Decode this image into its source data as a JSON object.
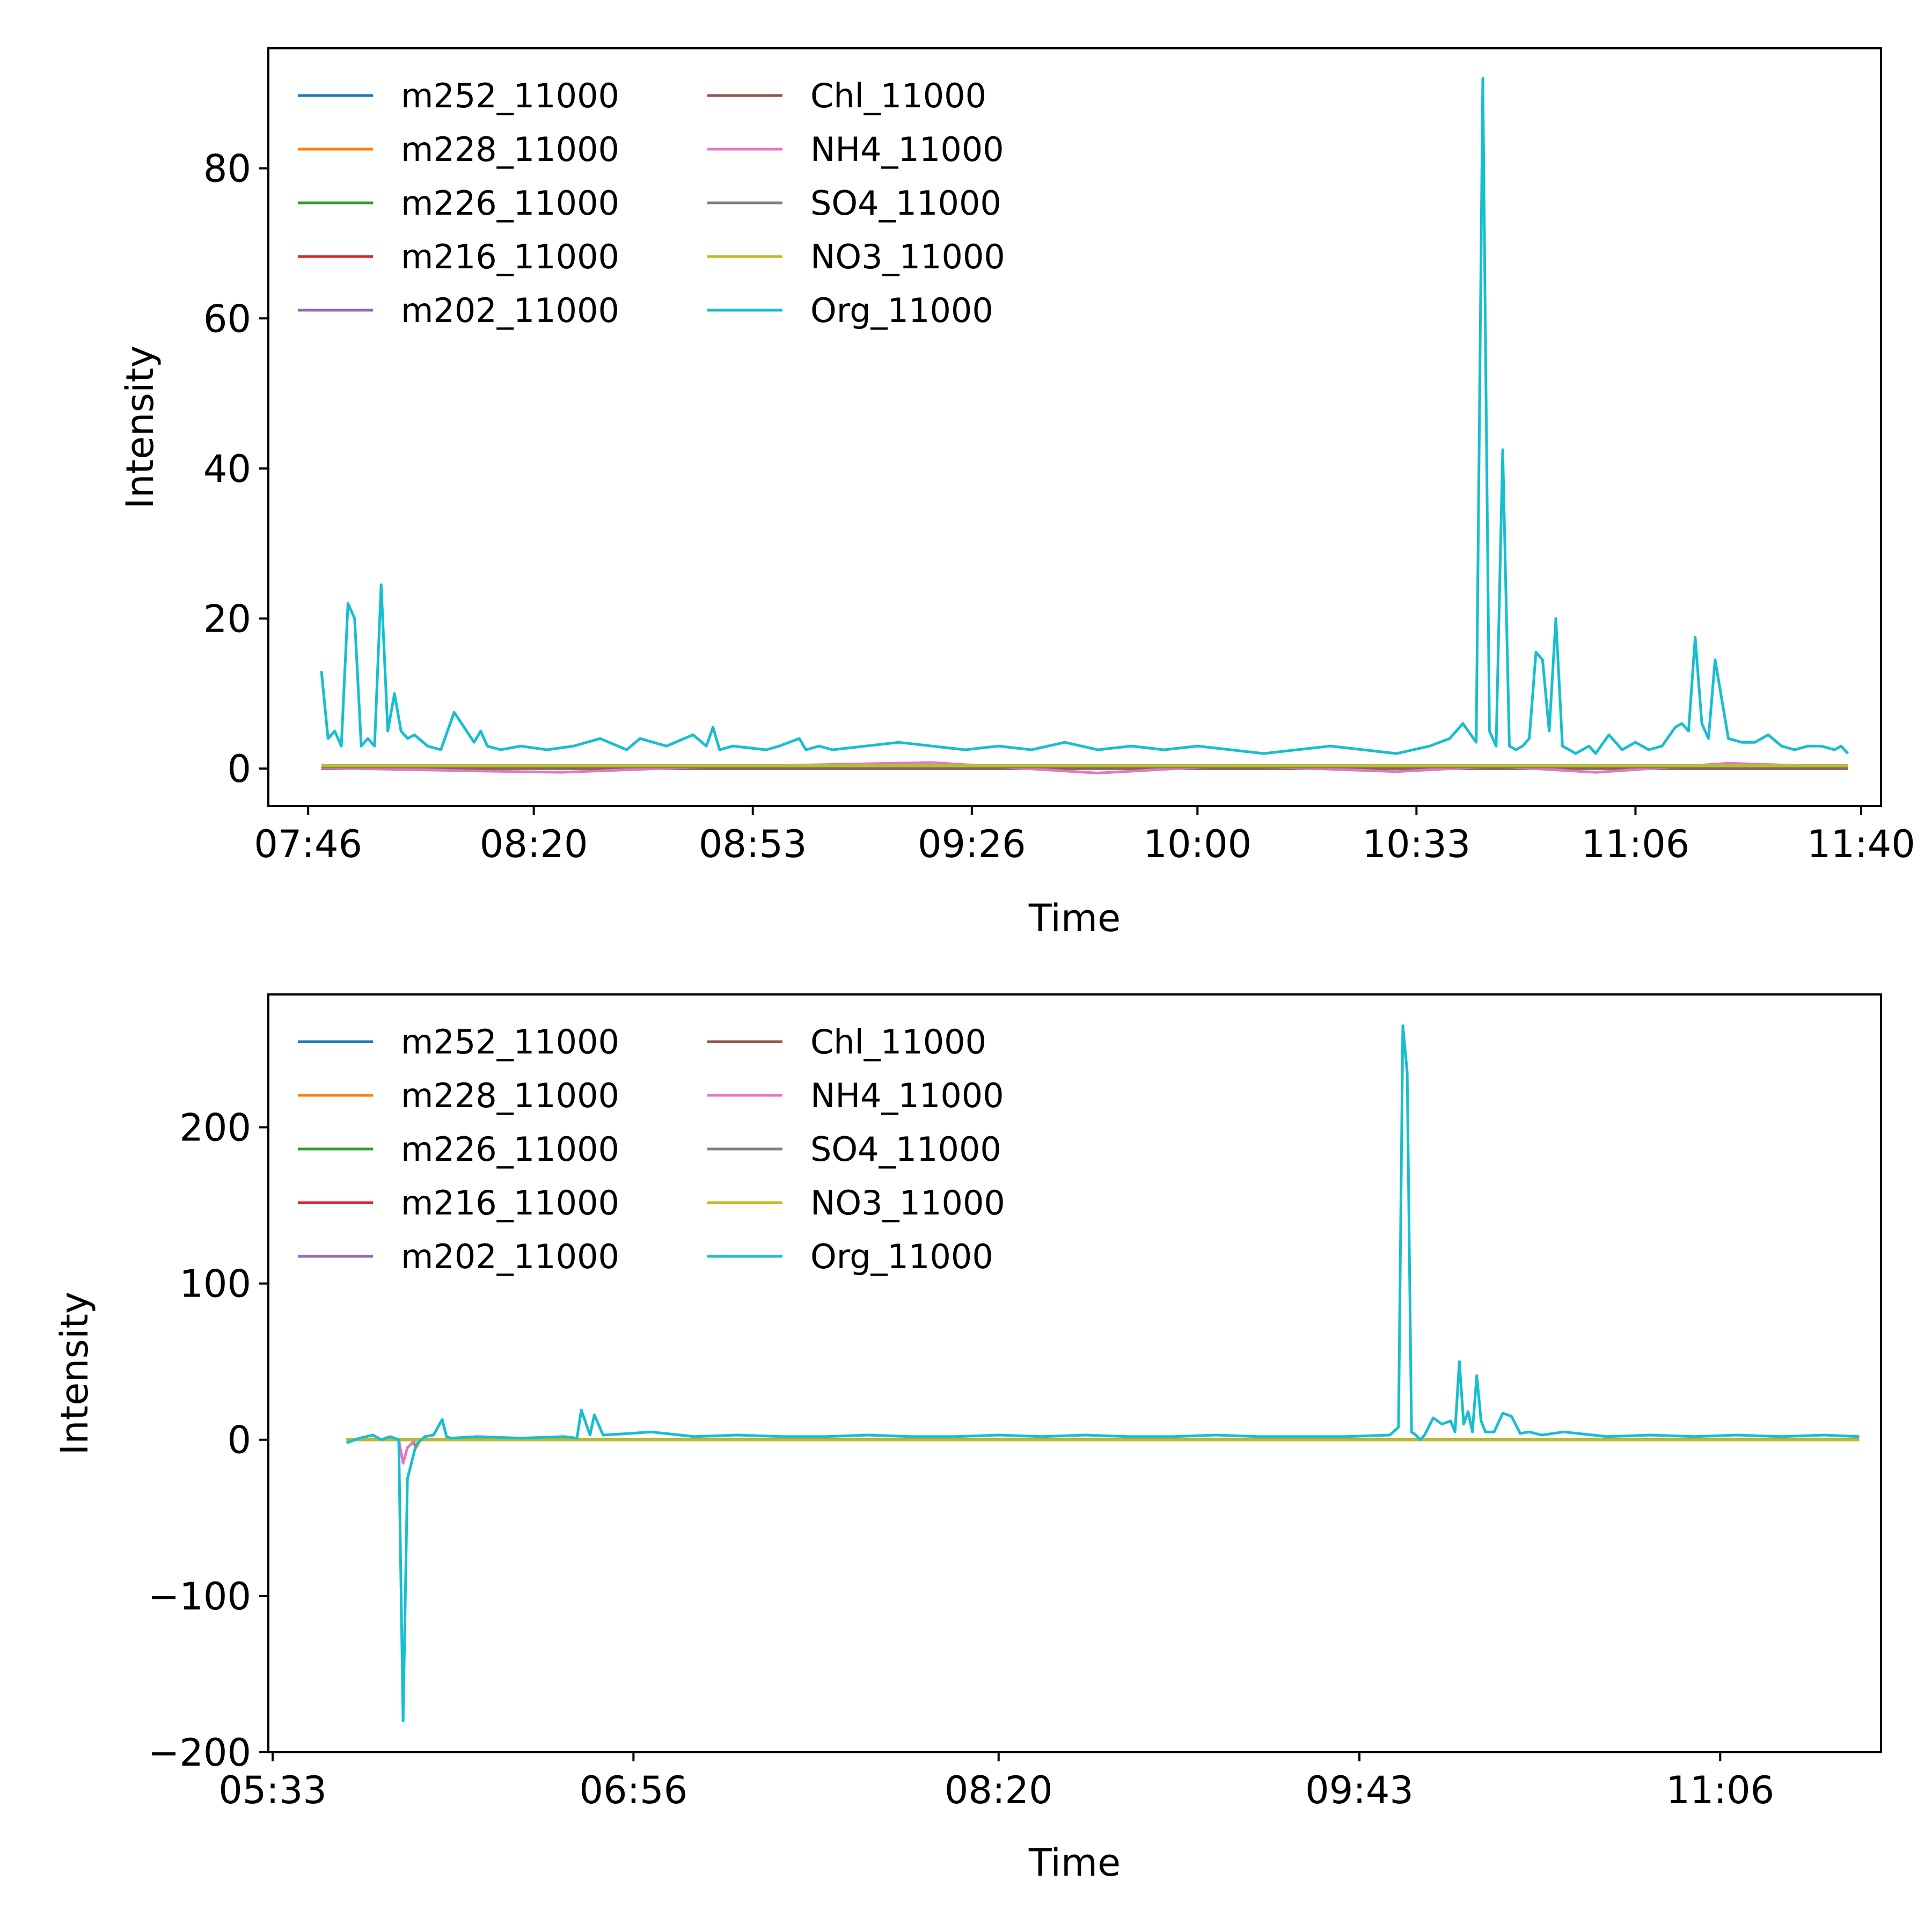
{
  "chart_data": [
    {
      "type": "line",
      "title": "",
      "xlabel": "Time",
      "ylabel": "Intensity",
      "xlim": [
        "07:40",
        "11:43"
      ],
      "ylim": [
        -5,
        96
      ],
      "xticks": [
        "07:46",
        "08:20",
        "08:53",
        "09:26",
        "10:00",
        "10:33",
        "11:06",
        "11:40"
      ],
      "yticks": [
        0,
        20,
        40,
        60,
        80
      ],
      "grid": false,
      "legend": {
        "placement": "top-left",
        "columns": 2
      },
      "series": [
        {
          "name": "m252_11000",
          "color": "#1f77b4",
          "x": [
            "07:48",
            "11:38"
          ],
          "y": [
            0.1,
            0.1
          ]
        },
        {
          "name": "m228_11000",
          "color": "#ff7f0e",
          "x": [
            "07:48",
            "11:38"
          ],
          "y": [
            0.1,
            0.1
          ]
        },
        {
          "name": "m226_11000",
          "color": "#2ca02c",
          "x": [
            "07:48",
            "11:38"
          ],
          "y": [
            0.05,
            0.05
          ]
        },
        {
          "name": "m216_11000",
          "color": "#d62728",
          "x": [
            "07:48",
            "11:38"
          ],
          "y": [
            0.05,
            0.05
          ]
        },
        {
          "name": "m202_11000",
          "color": "#9467bd",
          "x": [
            "07:48",
            "11:38"
          ],
          "y": [
            0.05,
            0.05
          ]
        },
        {
          "name": "Chl_11000",
          "color": "#8c564b",
          "x": [
            "07:48",
            "11:38"
          ],
          "y": [
            0.0,
            0.0
          ]
        },
        {
          "name": "NH4_11000",
          "color": "#e377c2",
          "x": [
            "07:48",
            "08:10",
            "08:24",
            "08:45",
            "09:20",
            "09:45",
            "10:05",
            "10:30",
            "10:45",
            "11:00",
            "11:20",
            "11:38"
          ],
          "y": [
            0.1,
            -0.3,
            -0.5,
            0.2,
            0.8,
            -0.6,
            0.4,
            -0.4,
            0.3,
            -0.5,
            0.7,
            0.2
          ]
        },
        {
          "name": "SO4_11000",
          "color": "#7f7f7f",
          "x": [
            "07:48",
            "11:38"
          ],
          "y": [
            0.2,
            0.2
          ]
        },
        {
          "name": "NO3_11000",
          "color": "#bcbd22",
          "x": [
            "07:48",
            "11:38"
          ],
          "y": [
            0.4,
            0.4
          ]
        },
        {
          "name": "Org_11000",
          "color": "#17becf",
          "x": [
            "07:48",
            "07:49",
            "07:50",
            "07:51",
            "07:52",
            "07:53",
            "07:54",
            "07:55",
            "07:56",
            "07:57",
            "07:58",
            "07:59",
            "08:00",
            "08:01",
            "08:02",
            "08:04",
            "08:06",
            "08:08",
            "08:11",
            "08:12",
            "08:13",
            "08:15",
            "08:18",
            "08:22",
            "08:26",
            "08:30",
            "08:34",
            "08:36",
            "08:40",
            "08:44",
            "08:46",
            "08:47",
            "08:48",
            "08:50",
            "08:55",
            "08:57",
            "09:00",
            "09:01",
            "09:03",
            "09:05",
            "09:10",
            "09:15",
            "09:20",
            "09:25",
            "09:30",
            "09:35",
            "09:40",
            "09:45",
            "09:50",
            "09:55",
            "10:00",
            "10:05",
            "10:10",
            "10:15",
            "10:20",
            "10:25",
            "10:30",
            "10:35",
            "10:38",
            "10:40",
            "10:42",
            "10:43",
            "10:44",
            "10:45",
            "10:46",
            "10:47",
            "10:48",
            "10:49",
            "10:50",
            "10:51",
            "10:52",
            "10:53",
            "10:54",
            "10:55",
            "10:56",
            "10:57",
            "10:58",
            "10:59",
            "11:00",
            "11:02",
            "11:04",
            "11:06",
            "11:08",
            "11:10",
            "11:12",
            "11:13",
            "11:14",
            "11:15",
            "11:16",
            "11:17",
            "11:18",
            "11:20",
            "11:22",
            "11:24",
            "11:26",
            "11:28",
            "11:30",
            "11:32",
            "11:34",
            "11:36",
            "11:37",
            "11:38"
          ],
          "y": [
            13,
            4,
            5,
            3,
            22,
            20,
            3,
            4,
            3,
            24.5,
            5,
            10,
            5,
            4,
            4.5,
            3,
            2.5,
            7.5,
            3.5,
            5,
            3,
            2.5,
            3,
            2.5,
            3,
            4,
            2.5,
            4,
            3,
            4.5,
            3,
            5.5,
            2.5,
            3,
            2.5,
            3,
            4,
            2.5,
            3,
            2.5,
            3,
            3.5,
            3,
            2.5,
            3,
            2.5,
            3.5,
            2.5,
            3,
            2.5,
            3,
            2.5,
            2,
            2.5,
            3,
            2.5,
            2,
            3,
            4,
            6,
            3.5,
            92,
            5,
            3,
            42.5,
            3,
            2.5,
            3,
            4,
            15.5,
            14.5,
            5,
            20,
            3,
            2.5,
            2,
            2.5,
            3,
            2,
            4.5,
            2.5,
            3.5,
            2.5,
            3,
            5.5,
            6,
            5,
            17.5,
            6,
            4,
            14.5,
            4,
            3.5,
            3.5,
            4.5,
            3,
            2.5,
            3,
            3,
            2.5,
            3,
            2
          ]
        }
      ]
    },
    {
      "type": "line",
      "title": "",
      "xlabel": "Time",
      "ylabel": "Intensity",
      "xlim": [
        "05:32",
        "11:43"
      ],
      "ylim": [
        -200,
        285
      ],
      "xticks": [
        "05:33",
        "06:56",
        "08:20",
        "09:43",
        "11:06"
      ],
      "yticks": [
        -200,
        -100,
        0,
        100,
        200
      ],
      "grid": false,
      "legend": {
        "placement": "top-left",
        "columns": 2
      },
      "series": [
        {
          "name": "m252_11000",
          "color": "#1f77b4",
          "x": [
            "05:50",
            "11:38"
          ],
          "y": [
            0,
            0
          ]
        },
        {
          "name": "m228_11000",
          "color": "#ff7f0e",
          "x": [
            "05:50",
            "06:05",
            "06:06",
            "06:07",
            "11:38"
          ],
          "y": [
            0,
            0,
            -5,
            0,
            0
          ]
        },
        {
          "name": "m226_11000",
          "color": "#2ca02c",
          "x": [
            "05:50",
            "11:38"
          ],
          "y": [
            0,
            0
          ]
        },
        {
          "name": "m216_11000",
          "color": "#d62728",
          "x": [
            "05:50",
            "11:38"
          ],
          "y": [
            0,
            0
          ]
        },
        {
          "name": "m202_11000",
          "color": "#9467bd",
          "x": [
            "05:50",
            "11:38"
          ],
          "y": [
            0,
            0
          ]
        },
        {
          "name": "Chl_11000",
          "color": "#8c564b",
          "x": [
            "05:50",
            "11:38"
          ],
          "y": [
            0,
            0
          ]
        },
        {
          "name": "NH4_11000",
          "color": "#e377c2",
          "x": [
            "05:50",
            "06:02",
            "06:03",
            "06:04",
            "06:06",
            "11:38"
          ],
          "y": [
            0,
            0,
            -15,
            -5,
            0,
            0
          ]
        },
        {
          "name": "SO4_11000",
          "color": "#7f7f7f",
          "x": [
            "05:50",
            "11:38"
          ],
          "y": [
            0,
            0
          ]
        },
        {
          "name": "NO3_11000",
          "color": "#bcbd22",
          "x": [
            "05:50",
            "11:38"
          ],
          "y": [
            0,
            0
          ]
        },
        {
          "name": "Org_11000",
          "color": "#17becf",
          "x": [
            "05:50",
            "05:53",
            "05:56",
            "05:58",
            "06:00",
            "06:02",
            "06:03",
            "06:04",
            "06:06",
            "06:08",
            "06:10",
            "06:12",
            "06:13",
            "06:14",
            "06:20",
            "06:30",
            "06:40",
            "06:43",
            "06:44",
            "06:46",
            "06:47",
            "06:49",
            "06:55",
            "07:00",
            "07:10",
            "07:20",
            "07:30",
            "07:40",
            "07:50",
            "08:00",
            "08:10",
            "08:20",
            "08:30",
            "08:40",
            "08:50",
            "09:00",
            "09:10",
            "09:20",
            "09:30",
            "09:40",
            "09:50",
            "09:52",
            "09:53",
            "09:54",
            "09:55",
            "09:56",
            "09:57",
            "09:58",
            "10:00",
            "10:02",
            "10:04",
            "10:05",
            "10:06",
            "10:07",
            "10:08",
            "10:09",
            "10:10",
            "10:11",
            "10:12",
            "10:14",
            "10:16",
            "10:18",
            "10:20",
            "10:22",
            "10:25",
            "10:30",
            "10:40",
            "10:50",
            "11:00",
            "11:10",
            "11:20",
            "11:30",
            "11:38"
          ],
          "y": [
            -2,
            1,
            3,
            0,
            2,
            0,
            -180,
            -25,
            -3,
            2,
            3,
            13,
            2,
            1,
            2,
            1,
            2,
            1,
            19,
            3,
            16,
            3,
            4,
            5,
            2,
            3,
            2,
            2,
            3,
            2,
            2,
            3,
            2,
            3,
            2,
            2,
            3,
            2,
            2,
            2,
            3,
            8,
            265,
            235,
            5,
            3,
            0,
            3,
            14,
            10,
            12,
            5,
            50,
            10,
            18,
            5,
            41,
            12,
            5,
            5,
            17,
            15,
            4,
            5,
            3,
            5,
            2,
            3,
            2,
            3,
            2,
            3,
            2
          ]
        }
      ]
    }
  ]
}
